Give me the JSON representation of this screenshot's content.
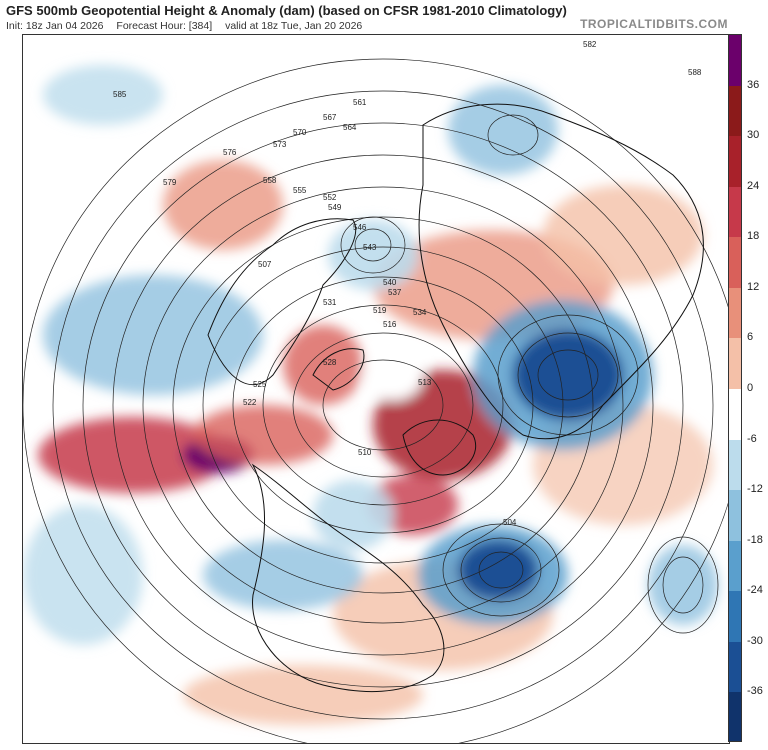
{
  "header": {
    "title": "GFS 500mb Geopotential Height & Anomaly (dam) (based on CFSR 1981-2010 Climatology)",
    "init": "Init: 18z Jan 04 2026",
    "forecast_hour": "Forecast Hour: [384]",
    "valid": "valid at 18z Tue, Jan 20 2026",
    "brand": "TROPICALTIDBITS.COM"
  },
  "colorbar": {
    "ticks": [
      "36",
      "30",
      "24",
      "18",
      "12",
      "6",
      "0",
      "-6",
      "-12",
      "-18",
      "-24",
      "-30",
      "-36"
    ],
    "colors": [
      "#6b006b",
      "#8b1a1a",
      "#a8212a",
      "#c6394a",
      "#d9605a",
      "#e8907a",
      "#f4c0a8",
      "#ffffff",
      "#bcdcec",
      "#8ec1de",
      "#5a9fcd",
      "#2f76b4",
      "#1b4f94",
      "#10336b"
    ]
  },
  "map": {
    "contour_labels": [
      {
        "text": "582"
      },
      {
        "text": "585"
      },
      {
        "text": "579"
      },
      {
        "text": "576"
      },
      {
        "text": "573"
      },
      {
        "text": "570"
      },
      {
        "text": "567"
      },
      {
        "text": "564"
      },
      {
        "text": "561"
      },
      {
        "text": "558"
      },
      {
        "text": "555"
      },
      {
        "text": "552"
      },
      {
        "text": "549"
      },
      {
        "text": "546"
      },
      {
        "text": "543"
      },
      {
        "text": "540"
      },
      {
        "text": "537"
      },
      {
        "text": "534"
      },
      {
        "text": "531"
      },
      {
        "text": "528"
      },
      {
        "text": "525"
      },
      {
        "text": "522"
      },
      {
        "text": "519"
      },
      {
        "text": "516"
      },
      {
        "text": "513"
      },
      {
        "text": "510"
      },
      {
        "text": "507"
      },
      {
        "text": "504"
      },
      {
        "text": "588"
      }
    ]
  }
}
